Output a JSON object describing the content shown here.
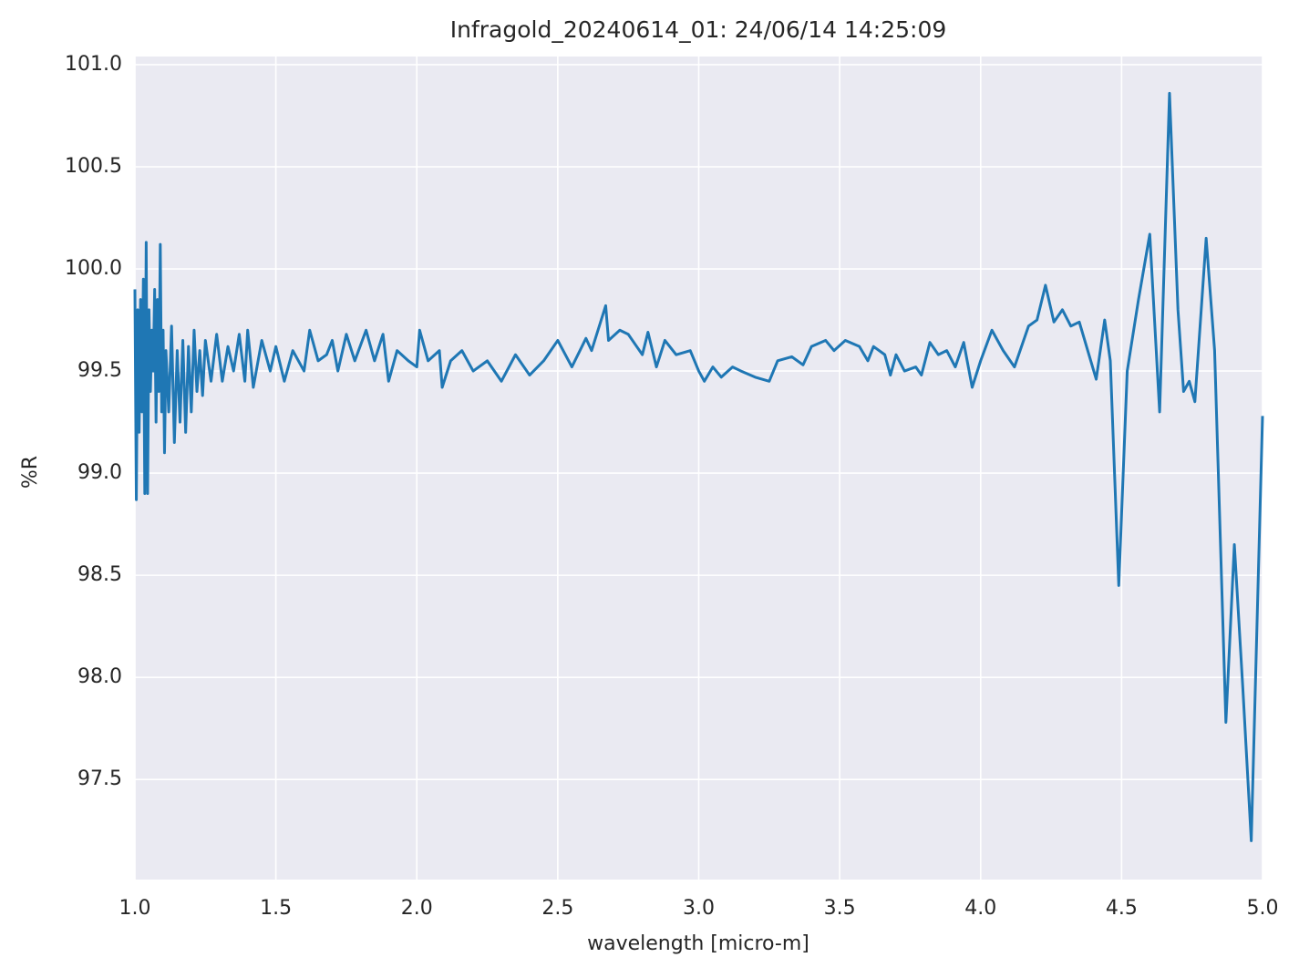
{
  "chart_data": {
    "type": "line",
    "title": "Infragold_20240614_01:  24/06/14 14:25:09",
    "xlabel": "wavelength [micro-m]",
    "ylabel": "%R",
    "color": "#1f77b4",
    "grid": true,
    "xlim": [
      1.0,
      5.0
    ],
    "xticks": [
      {
        "value": 1,
        "label": "1.0"
      },
      1.5,
      {
        "value": 2,
        "label": "2.0"
      },
      2.5,
      {
        "value": 3,
        "label": "3.0"
      },
      3.5,
      {
        "value": 4,
        "label": "4.0"
      },
      4.5,
      {
        "value": 5,
        "label": "5.0"
      }
    ],
    "ylim": [
      97.01,
      101.04
    ],
    "yticks": [
      97.5,
      {
        "value": 98,
        "label": "98.0"
      },
      98.5,
      {
        "value": 99,
        "label": "99.0"
      },
      99.5,
      {
        "value": 100,
        "label": "100.0"
      },
      100.5,
      {
        "value": 101,
        "label": "101.0"
      }
    ],
    "x": [
      1.0,
      1.005,
      1.01,
      1.015,
      1.02,
      1.025,
      1.03,
      1.035,
      1.04,
      1.045,
      1.05,
      1.055,
      1.06,
      1.065,
      1.07,
      1.075,
      1.08,
      1.085,
      1.09,
      1.095,
      1.1,
      1.105,
      1.11,
      1.12,
      1.13,
      1.14,
      1.15,
      1.16,
      1.17,
      1.18,
      1.19,
      1.2,
      1.21,
      1.22,
      1.23,
      1.24,
      1.25,
      1.27,
      1.29,
      1.31,
      1.33,
      1.35,
      1.37,
      1.39,
      1.4,
      1.42,
      1.45,
      1.48,
      1.5,
      1.53,
      1.56,
      1.6,
      1.62,
      1.65,
      1.68,
      1.7,
      1.72,
      1.75,
      1.78,
      1.82,
      1.85,
      1.88,
      1.9,
      1.93,
      1.97,
      2.0,
      2.01,
      2.04,
      2.08,
      2.09,
      2.12,
      2.16,
      2.2,
      2.25,
      2.3,
      2.35,
      2.4,
      2.45,
      2.5,
      2.55,
      2.6,
      2.62,
      2.67,
      2.68,
      2.72,
      2.75,
      2.78,
      2.8,
      2.82,
      2.85,
      2.88,
      2.92,
      2.97,
      3.0,
      3.02,
      3.05,
      3.08,
      3.12,
      3.15,
      3.2,
      3.25,
      3.28,
      3.33,
      3.37,
      3.4,
      3.45,
      3.48,
      3.52,
      3.57,
      3.6,
      3.62,
      3.66,
      3.68,
      3.7,
      3.73,
      3.77,
      3.79,
      3.82,
      3.85,
      3.88,
      3.91,
      3.94,
      3.97,
      4.0,
      4.04,
      4.08,
      4.12,
      4.17,
      4.2,
      4.23,
      4.26,
      4.29,
      4.32,
      4.35,
      4.38,
      4.41,
      4.44,
      4.46,
      4.49,
      4.52,
      4.56,
      4.6,
      4.635,
      4.67,
      4.7,
      4.72,
      4.74,
      4.76,
      4.8,
      4.83,
      4.87,
      4.9,
      4.93,
      4.96,
      5.0
    ],
    "values": [
      99.9,
      98.87,
      99.8,
      99.2,
      99.85,
      99.3,
      99.95,
      98.9,
      100.13,
      98.9,
      99.8,
      99.4,
      99.7,
      99.5,
      99.9,
      99.25,
      99.85,
      99.4,
      100.12,
      99.3,
      99.7,
      99.1,
      99.6,
      99.3,
      99.72,
      99.15,
      99.6,
      99.25,
      99.65,
      99.2,
      99.62,
      99.3,
      99.7,
      99.4,
      99.6,
      99.38,
      99.65,
      99.45,
      99.68,
      99.45,
      99.62,
      99.5,
      99.68,
      99.45,
      99.7,
      99.42,
      99.65,
      99.5,
      99.62,
      99.45,
      99.6,
      99.5,
      99.7,
      99.55,
      99.58,
      99.65,
      99.5,
      99.68,
      99.55,
      99.7,
      99.55,
      99.68,
      99.45,
      99.6,
      99.55,
      99.52,
      99.7,
      99.55,
      99.6,
      99.42,
      99.55,
      99.6,
      99.5,
      99.55,
      99.45,
      99.58,
      99.48,
      99.55,
      99.65,
      99.52,
      99.66,
      99.6,
      99.82,
      99.65,
      99.7,
      99.68,
      99.62,
      99.58,
      99.69,
      99.52,
      99.65,
      99.58,
      99.6,
      99.5,
      99.45,
      99.52,
      99.47,
      99.52,
      99.5,
      99.47,
      99.45,
      99.55,
      99.57,
      99.53,
      99.62,
      99.65,
      99.6,
      99.65,
      99.62,
      99.55,
      99.62,
      99.58,
      99.48,
      99.58,
      99.5,
      99.52,
      99.48,
      99.64,
      99.58,
      99.6,
      99.52,
      99.64,
      99.42,
      99.55,
      99.7,
      99.6,
      99.52,
      99.72,
      99.75,
      99.92,
      99.74,
      99.8,
      99.72,
      99.74,
      99.6,
      99.46,
      99.75,
      99.55,
      98.45,
      99.5,
      99.85,
      100.17,
      99.3,
      100.86,
      99.8,
      99.4,
      99.45,
      99.35,
      100.15,
      99.6,
      97.78,
      98.65,
      97.95,
      97.2,
      99.28
    ]
  }
}
